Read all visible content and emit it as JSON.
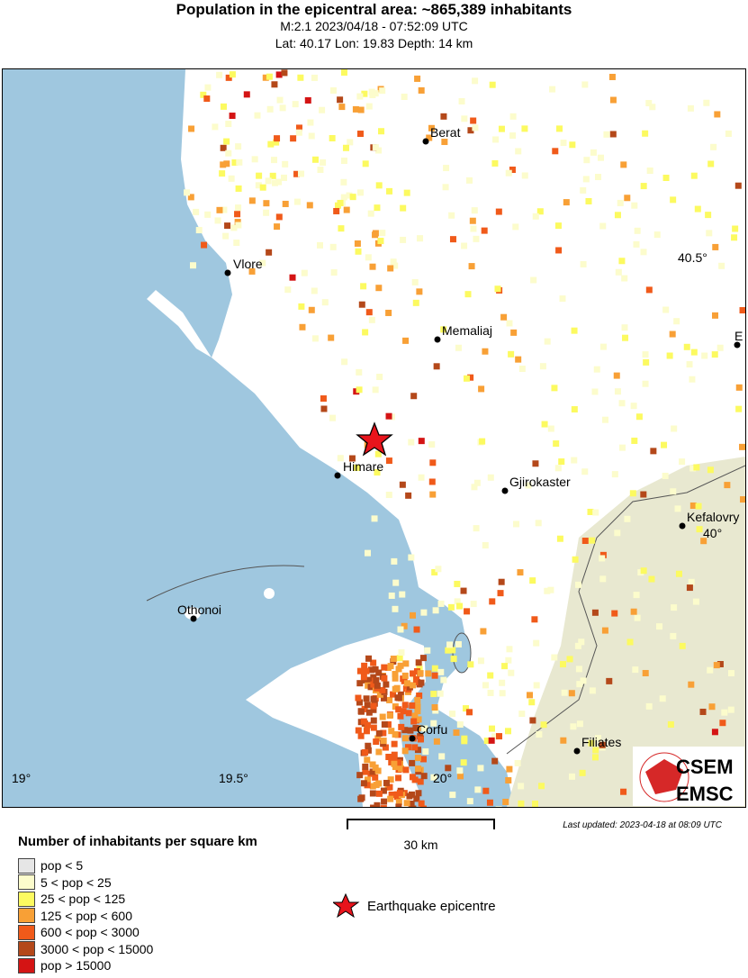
{
  "header": {
    "title": "Population in the epicentral area: ~865,389 inhabitants",
    "line1": "M:2.1 2023/04/18 - 07:52:09 UTC",
    "line2": "Lat: 40.17 Lon: 19.83 Depth: 14 km"
  },
  "map": {
    "cities": [
      "Berat",
      "Vlore",
      "Memaliaj",
      "Himare",
      "Gjirokaster",
      "Kefalovry",
      "Othonoi",
      "Corfu",
      "Filiates",
      "E"
    ],
    "lon_ticks": [
      "19°",
      "19.5°",
      "20°"
    ],
    "lat_ticks": [
      "40.5°",
      "40°"
    ],
    "epicentre": {
      "lat": 40.17,
      "lon": 19.83
    },
    "colors": {
      "sea": "#9fc7df",
      "land": "#ffffff",
      "greece_low": "#e8e8d8",
      "epicentre": "#e8141c"
    },
    "logo": "CSEM EMSC"
  },
  "scale": {
    "label": "30 km"
  },
  "updated": "Last updated: 2023-04-18 at 08:09 UTC",
  "legend": {
    "title": "Number of inhabitants per square km",
    "items": [
      {
        "label": "pop < 5",
        "color": "#e6e6e6"
      },
      {
        "label": "5 < pop < 25",
        "color": "#fcfccc"
      },
      {
        "label": "25 < pop < 125",
        "color": "#fcfa60"
      },
      {
        "label": "125 < pop < 600",
        "color": "#f8a036"
      },
      {
        "label": "600 < pop < 3000",
        "color": "#f05a1a"
      },
      {
        "label": "3000 < pop < 15000",
        "color": "#b4481a"
      },
      {
        "label": "pop > 15000",
        "color": "#d41414"
      }
    ],
    "epicentre_label": "Earthquake epicentre"
  }
}
